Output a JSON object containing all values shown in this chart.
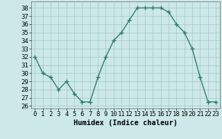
{
  "x": [
    0,
    1,
    2,
    3,
    4,
    5,
    6,
    7,
    8,
    9,
    10,
    11,
    12,
    13,
    14,
    15,
    16,
    17,
    18,
    19,
    20,
    21,
    22,
    23
  ],
  "y": [
    32,
    30,
    29.5,
    28,
    29,
    27.5,
    26.5,
    26.5,
    29.5,
    32,
    34,
    35,
    36.5,
    38,
    38,
    38,
    38,
    37.5,
    36,
    35,
    33,
    29.5,
    26.5,
    26.5
  ],
  "xlabel": "Humidex (Indice chaleur)",
  "xlim": [
    -0.5,
    23.5
  ],
  "ylim": [
    25.7,
    38.8
  ],
  "yticks": [
    26,
    27,
    28,
    29,
    30,
    31,
    32,
    33,
    34,
    35,
    36,
    37,
    38
  ],
  "xticks": [
    0,
    1,
    2,
    3,
    4,
    5,
    6,
    7,
    8,
    9,
    10,
    11,
    12,
    13,
    14,
    15,
    16,
    17,
    18,
    19,
    20,
    21,
    22,
    23
  ],
  "line_color": "#2d7a6a",
  "marker": "+",
  "marker_size": 4,
  "marker_lw": 1.0,
  "line_width": 1.0,
  "bg_color": "#cce8e8",
  "grid_color": "#aacccc",
  "font_family": "monospace",
  "tick_fontsize": 6.5,
  "xlabel_fontsize": 7.5
}
